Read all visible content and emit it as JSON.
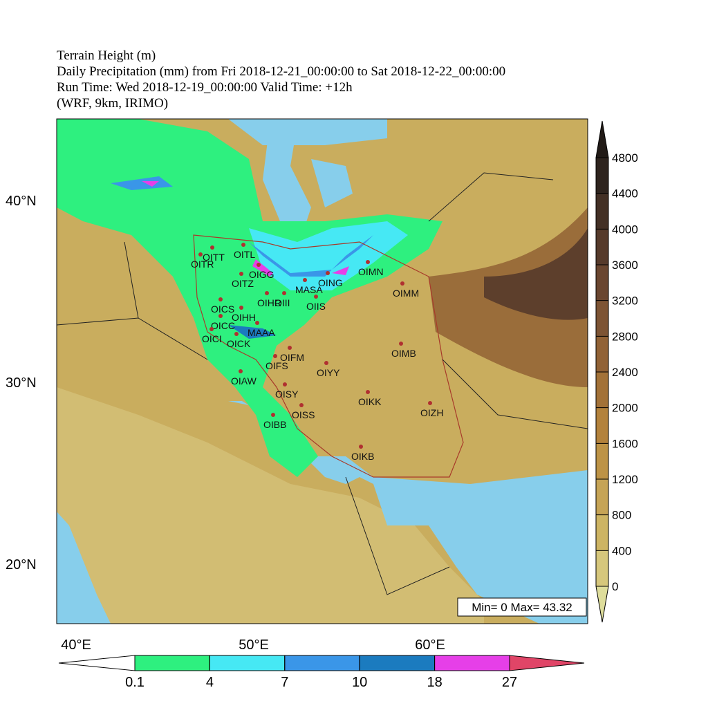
{
  "header": {
    "lines": [
      "Terrain Height (m)",
      "Daily Precipitation (mm) from Fri 2018-12-21_00:00:00 to Sat 2018-12-22_00:00:00",
      "Run Time:  Wed 2018-12-19_00:00:00    Valid Time: +12h",
      "(WRF, 9km, IRIMO)"
    ]
  },
  "map": {
    "lat_labels": [
      "40°N",
      "30°N",
      "20°N"
    ],
    "lon_labels": [
      "40°E",
      "50°E",
      "60°E"
    ],
    "stations": [
      "OITR",
      "OITT",
      "OITL",
      "OIGG",
      "OITZ",
      "OING",
      "OIMN",
      "MASA",
      "OIMM",
      "OIHR",
      "OIII",
      "OIIS",
      "OICS",
      "OIHH",
      "OICC",
      "MAAA",
      "OICI",
      "OICK",
      "OIFM",
      "OIFS",
      "OIYY",
      "OIAW",
      "OIMB",
      "OISY",
      "OIKK",
      "OISS",
      "OIZH",
      "OIBB",
      "OIKB"
    ],
    "summary": "Min= 0 Max= 43.32"
  },
  "terrain_colorbar": {
    "ticks": [
      0,
      400,
      800,
      1200,
      1600,
      2000,
      2400,
      2800,
      3200,
      3600,
      4000,
      4400,
      4800
    ],
    "colors": [
      "#dedd9b",
      "#d6c77c",
      "#cdb463",
      "#c6a456",
      "#bd9346",
      "#b3823c",
      "#a37238",
      "#916236",
      "#7d5434",
      "#6a4630",
      "#563a2b",
      "#433025",
      "#2e241e",
      "#221b17"
    ]
  },
  "precip_colorbar": {
    "levels": [
      0.1,
      4,
      7,
      10,
      18,
      27
    ],
    "colors": [
      "#ffffff",
      "#2ef07f",
      "#46e8f4",
      "#3a96e8",
      "#1b7bbf",
      "#e63fe8",
      "#e04567"
    ]
  }
}
